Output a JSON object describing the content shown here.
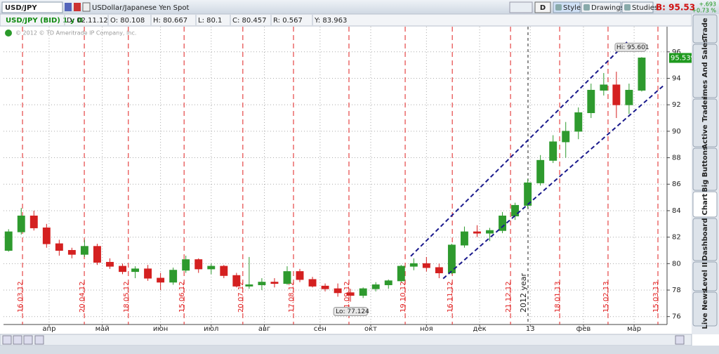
{
  "toolbar": {
    "symbol": "USD/JPY",
    "description": "USDollar/Japanese Yen Spot",
    "period_button": "D",
    "buttons": [
      "Style",
      "Drawings",
      "Studies"
    ],
    "bid": "B: 95.53",
    "change": "+.693",
    "change_pct": "+0.73 %"
  },
  "info_bar": {
    "title": "USD/JPY (BID) 1 y D",
    "fields": [
      "D: 02.11.12",
      "O: 80.108",
      "H: 80.667",
      "L: 80.1",
      "C: 80.457",
      "R: 0.567",
      "Y: 83.963"
    ]
  },
  "side_tabs": [
    "Trade",
    "Times And Sales",
    "Active Trader",
    "Big Buttons",
    "Chart",
    "Dashboard",
    "Level II",
    "Live News"
  ],
  "chart_data": {
    "type": "candlestick",
    "watermark": "© 2012 © TD Ameritrade IP Company, Inc.",
    "x": [
      2,
      7,
      12,
      17,
      22,
      27,
      32,
      37,
      42,
      47,
      52,
      57,
      62,
      67,
      72,
      77,
      82,
      87,
      92,
      97,
      102,
      107,
      112,
      117,
      122,
      127,
      132,
      137,
      142,
      147,
      152,
      157,
      162,
      167,
      172,
      177,
      182,
      187,
      192,
      197,
      202,
      207,
      212,
      217,
      222,
      227,
      232,
      237,
      242,
      247,
      252
    ],
    "open": [
      81.0,
      82.4,
      83.6,
      82.7,
      81.5,
      81.0,
      80.7,
      81.3,
      80.1,
      79.8,
      79.4,
      79.6,
      78.9,
      78.6,
      79.5,
      80.3,
      79.6,
      79.8,
      79.1,
      78.3,
      78.4,
      78.6,
      78.5,
      79.4,
      78.8,
      78.3,
      78.1,
      77.8,
      77.6,
      78.1,
      78.4,
      78.7,
      79.8,
      80.0,
      79.7,
      79.3,
      81.4,
      82.4,
      82.3,
      82.5,
      83.6,
      84.4,
      86.1,
      87.8,
      89.2,
      90.0,
      91.4,
      93.1,
      93.5,
      92.0,
      93.1
    ],
    "high": [
      82.6,
      84.2,
      84.0,
      83.0,
      81.8,
      81.2,
      81.8,
      81.5,
      80.4,
      80.0,
      79.8,
      79.9,
      79.3,
      79.7,
      80.6,
      80.4,
      80.0,
      79.9,
      79.3,
      80.5,
      78.9,
      78.9,
      79.8,
      79.6,
      79.0,
      78.5,
      78.5,
      78.1,
      78.2,
      78.6,
      78.8,
      79.9,
      80.4,
      80.5,
      80.0,
      81.5,
      82.8,
      82.9,
      82.7,
      83.9,
      84.6,
      86.4,
      88.2,
      89.7,
      90.7,
      91.8,
      93.6,
      94.4,
      94.5,
      93.6,
      95.601
    ],
    "low": [
      80.9,
      82.2,
      82.5,
      81.2,
      80.6,
      80.4,
      80.5,
      79.9,
      79.6,
      79.2,
      78.9,
      78.7,
      78.0,
      78.4,
      79.3,
      79.3,
      79.2,
      78.9,
      78.2,
      78.1,
      78.0,
      78.2,
      78.4,
      78.6,
      78.2,
      77.9,
      77.5,
      77.124,
      77.4,
      77.9,
      78.1,
      78.6,
      79.5,
      79.4,
      78.9,
      79.2,
      81.2,
      82.0,
      81.7,
      82.3,
      83.3,
      84.2,
      85.9,
      87.6,
      88.0,
      89.4,
      91.0,
      92.7,
      91.0,
      91.3,
      93.0
    ],
    "close": [
      82.4,
      83.6,
      82.7,
      81.5,
      81.0,
      80.7,
      81.3,
      80.1,
      79.8,
      79.4,
      79.6,
      78.9,
      78.6,
      79.5,
      80.3,
      79.6,
      79.8,
      79.1,
      78.3,
      78.4,
      78.6,
      78.5,
      79.4,
      78.8,
      78.3,
      78.1,
      77.8,
      77.6,
      78.1,
      78.4,
      78.7,
      79.8,
      80.0,
      79.7,
      79.3,
      81.4,
      82.4,
      82.3,
      82.5,
      83.6,
      84.4,
      86.1,
      87.8,
      89.2,
      90.0,
      91.4,
      93.1,
      93.5,
      92.0,
      93.1,
      95.539
    ],
    "up_color": "#2e9a2e",
    "down_color": "#d42020",
    "xlim": [
      0,
      262
    ],
    "ylim": [
      75.4,
      97.9
    ],
    "yticks": [
      76,
      78,
      80,
      82,
      84,
      86,
      88,
      90,
      92,
      94,
      96
    ],
    "xticks": [
      {
        "value": 18,
        "label": "апр"
      },
      {
        "value": 39,
        "label": "май"
      },
      {
        "value": 62,
        "label": "июн"
      },
      {
        "value": 82,
        "label": "июл"
      },
      {
        "value": 103,
        "label": "авг"
      },
      {
        "value": 125,
        "label": "сен"
      },
      {
        "value": 145,
        "label": "окт"
      },
      {
        "value": 167,
        "label": "ноя"
      },
      {
        "value": 188,
        "label": "дек"
      },
      {
        "value": 208,
        "label": "13"
      },
      {
        "value": 229,
        "label": "фев"
      },
      {
        "value": 249,
        "label": "мар"
      }
    ],
    "grid": true,
    "markers": [
      {
        "x": 7.5,
        "label": "16.03.12"
      },
      {
        "x": 31.9,
        "label": "20.04.12"
      },
      {
        "x": 49.3,
        "label": "18.05.12"
      },
      {
        "x": 71.3,
        "label": "15.06.12"
      },
      {
        "x": 94.5,
        "label": "20.07.12"
      },
      {
        "x": 114.5,
        "label": "17.08.12"
      },
      {
        "x": 136.4,
        "label": "21.09.12"
      },
      {
        "x": 158.6,
        "label": "19.10.12"
      },
      {
        "x": 177.2,
        "label": "16.11.12"
      },
      {
        "x": 200.2,
        "label": "21.12.12"
      },
      {
        "x": 219.6,
        "label": "18.01.13"
      },
      {
        "x": 238.7,
        "label": "15.02.13"
      },
      {
        "x": 258.4,
        "label": "15.03.13"
      }
    ],
    "marker_color": "#e02020",
    "year_marker": {
      "x": 207.1,
      "label": "2012 year"
    },
    "trendlines": [
      {
        "x": [
          160.8,
          246.2
        ],
        "y": [
          80.56,
          96.74
        ]
      },
      {
        "x": [
          173.6,
          260.6
        ],
        "y": [
          78.87,
          93.45
        ]
      }
    ],
    "trendline_color": "#1a1a8c",
    "high_label": "Hi: 95.601",
    "low_label": "Lo: 77.124",
    "last_price": 95.539
  }
}
